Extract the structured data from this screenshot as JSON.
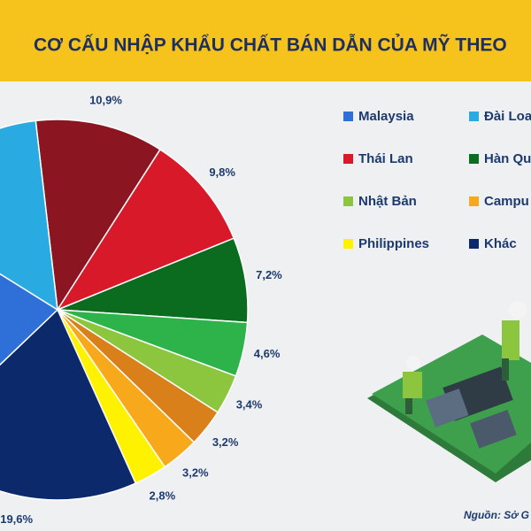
{
  "chart_data": {
    "type": "pie",
    "title": "CƠ CẤU NHẬP KHẨU CHẤT BÁN DẪN CỦA MỸ THEO",
    "source": "Nguồn: Sở G",
    "categories": [
      null,
      "Thái Lan",
      "Hàn Qu",
      null,
      "Nhật Bản",
      null,
      "Campu",
      "Philippines",
      "Khác",
      "Malaysia",
      "Đài Loa"
    ],
    "values": [
      10.9,
      9.8,
      7.2,
      4.6,
      3.4,
      3.2,
      3.2,
      2.8,
      19.6,
      21.0,
      14.3
    ],
    "value_labels": [
      "10,9%",
      "9,8%",
      "7,2%",
      "4,6%",
      "3,4%",
      "3,2%",
      "3,2%",
      "2,8%",
      "19,6%",
      null,
      null
    ],
    "colors": [
      "#8b1520",
      "#d7192a",
      "#0b6b1e",
      "#2db34a",
      "#8cc63f",
      "#d9801a",
      "#f7a81b",
      "#fff200",
      "#0c2a6b",
      "#2e6fd8",
      "#29abe2"
    ]
  }
}
